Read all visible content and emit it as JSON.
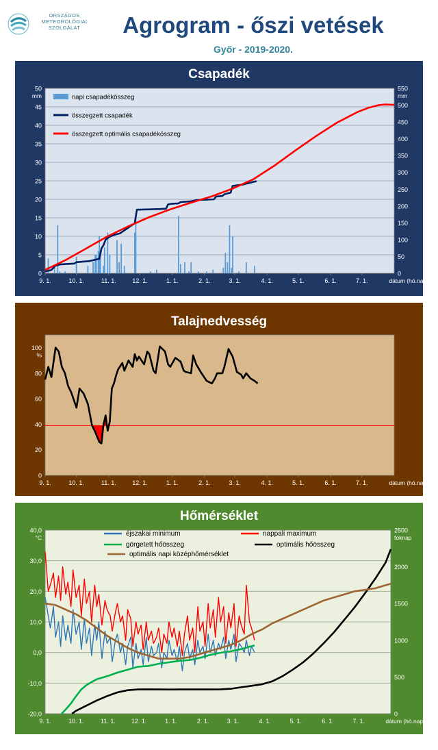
{
  "header": {
    "logo_lines": [
      "ORSZÁGOS",
      "METEOROLÓGIAI",
      "SZOLGÁLAT"
    ],
    "title": "Agrogram - őszi vetések",
    "subtitle": "Győr - 2019-2020."
  },
  "colors": {
    "title": "#1f497d",
    "subtitle": "#31849b",
    "panel1_bg": "#1f3864",
    "panel2_bg": "#6e3600",
    "panel3_bg": "#4f8a2e"
  },
  "chart_data": [
    {
      "type": "bar",
      "title": "Csapadék",
      "x_ticks": [
        "9. 1.",
        "10. 1.",
        "11. 1.",
        "12. 1.",
        "1. 1.",
        "2. 1.",
        "3. 1.",
        "4. 1.",
        "5. 1.",
        "6. 1.",
        "7. 1."
      ],
      "x_axis_label": "dátum (hó.nap)",
      "xlim_days": [
        0,
        335
      ],
      "y_left": {
        "unit": "mm",
        "ylim": [
          0,
          50
        ],
        "ticks": [
          0,
          5,
          10,
          15,
          20,
          25,
          30,
          35,
          40,
          45,
          50
        ]
      },
      "y_right": {
        "unit": "mm",
        "ylim": [
          0,
          550
        ],
        "ticks": [
          0,
          50,
          100,
          150,
          200,
          250,
          300,
          350,
          400,
          450,
          500,
          550
        ]
      },
      "legend": [
        "napi csapadékösszeg",
        "összegzett csapadék",
        "összegzett optimális csapadékösszeg"
      ],
      "series": [
        {
          "name": "napi csapadékösszeg",
          "axis": "left",
          "color": "#5b9bd5",
          "x": [
            3,
            9,
            12,
            14,
            19,
            30,
            41,
            46,
            48,
            49,
            51,
            52,
            53,
            56,
            57,
            60,
            62,
            69,
            71,
            73,
            76,
            86,
            87,
            101,
            107,
            128,
            130,
            134,
            138,
            140,
            147,
            155,
            161,
            171,
            173,
            175,
            177,
            179,
            180,
            186,
            193,
            201
          ],
          "y": [
            4,
            2,
            13,
            0.5,
            0.5,
            4.5,
            2,
            3,
            5,
            5,
            6,
            10,
            4,
            2,
            7,
            11,
            5,
            9,
            3,
            8,
            2,
            11,
            16,
            0.5,
            1,
            15.5,
            2.5,
            3,
            0.5,
            3,
            0.5,
            0.5,
            1,
            1.5,
            5.5,
            3,
            13,
            1.5,
            10,
            0.5,
            3,
            2
          ]
        },
        {
          "name": "összegzett csapadék",
          "axis": "right",
          "color": "#002060",
          "x": [
            0,
            6,
            10,
            14,
            18,
            28,
            30,
            42,
            52,
            54,
            56,
            58,
            62,
            66,
            72,
            86,
            88,
            100,
            110,
            116,
            118,
            122,
            128,
            130,
            140,
            146,
            155,
            162,
            164,
            170,
            172,
            178,
            180,
            190,
            200,
            203
          ],
          "y": [
            5,
            10,
            23,
            26,
            27,
            29,
            33,
            36,
            43,
            74,
            84,
            100,
            109,
            114,
            119,
            149,
            189,
            190,
            191,
            192,
            205,
            207,
            208,
            212,
            214,
            218,
            219,
            220,
            228,
            230,
            235,
            240,
            260,
            264,
            272,
            274
          ]
        },
        {
          "name": "összegzett optimális csapadékösszeg",
          "axis": "right",
          "color": "#ff0000",
          "x": [
            0,
            20,
            40,
            60,
            80,
            100,
            120,
            140,
            160,
            180,
            200,
            220,
            240,
            260,
            280,
            300,
            310,
            320,
            326,
            335
          ],
          "y": [
            10,
            40,
            75,
            110,
            140,
            167,
            190,
            210,
            229,
            252,
            280,
            320,
            365,
            408,
            448,
            480,
            492,
            500,
            502,
            501
          ]
        }
      ]
    },
    {
      "type": "line",
      "title": "Talajnedvesség",
      "x_ticks": [
        "9. 1.",
        "10. 1.",
        "11. 1.",
        "12. 1.",
        "1. 1.",
        "2. 1.",
        "3. 1.",
        "4. 1.",
        "5. 1.",
        "6. 1.",
        "7. 1."
      ],
      "x_axis_label": "dátum (hó.nap)",
      "xlim_days": [
        0,
        335
      ],
      "y_left": {
        "unit": "%",
        "ylim": [
          0,
          110
        ],
        "ticks": [
          0,
          20,
          40,
          60,
          80,
          100
        ]
      },
      "threshold": {
        "value": 39,
        "color": "#ff0000"
      },
      "series": [
        {
          "name": "",
          "color": "#000000",
          "x": [
            0,
            3,
            6,
            10,
            13,
            16,
            19,
            22,
            25,
            28,
            30,
            33,
            37,
            41,
            45,
            48,
            50,
            52,
            54,
            56,
            58,
            60,
            62,
            64,
            66,
            68,
            70,
            74,
            76,
            80,
            84,
            86,
            88,
            90,
            95,
            98,
            100,
            104,
            106,
            110,
            115,
            118,
            120,
            125,
            130,
            133,
            135,
            140,
            142,
            145,
            150,
            155,
            160,
            163,
            165,
            168,
            170,
            172,
            176,
            180,
            184,
            188,
            190,
            193,
            197,
            201,
            204
          ],
          "y": [
            75,
            85,
            77,
            100,
            97,
            85,
            80,
            70,
            65,
            58,
            53,
            68,
            64,
            56,
            39,
            34,
            30,
            26,
            25,
            40,
            47,
            35,
            42,
            68,
            72,
            78,
            83,
            88,
            82,
            90,
            85,
            95,
            90,
            93,
            87,
            97,
            95,
            82,
            80,
            101,
            97,
            87,
            85,
            92,
            89,
            82,
            81,
            80,
            94,
            87,
            80,
            74,
            72,
            76,
            80,
            80,
            80,
            85,
            99,
            93,
            81,
            79,
            76,
            80,
            76,
            74,
            72
          ]
        }
      ]
    },
    {
      "type": "line",
      "title": "Hőmérséklet",
      "x_ticks": [
        "9. 1.",
        "10. 1.",
        "11. 1.",
        "12. 1.",
        "1. 1.",
        "2. 1.",
        "3. 1.",
        "4. 1.",
        "5. 1.",
        "6. 1.",
        "7. 1."
      ],
      "x_axis_label": "dátum (hó.nap)",
      "xlim_days": [
        0,
        335
      ],
      "y_left": {
        "unit": "°C",
        "ylim": [
          -20,
          40
        ],
        "ticks": [
          "-20,0",
          "-10,0",
          "0,0",
          "10,0",
          "20,0",
          "30,0",
          "40,0"
        ]
      },
      "y_right": {
        "unit": "foknap",
        "ylim": [
          0,
          2500
        ],
        "ticks": [
          0,
          500,
          1000,
          1500,
          2000,
          2500
        ]
      },
      "legend": [
        "éjszakai minimum",
        "nappali maximum",
        "görgetett hőösszeg",
        "optimális hőösszeg",
        "optimális napi középhőmérséklet"
      ],
      "series": [
        {
          "name": "éjszakai minimum",
          "axis": "left",
          "color": "#2e75b6",
          "x": [
            0,
            3,
            5,
            8,
            10,
            13,
            15,
            17,
            20,
            22,
            25,
            27,
            30,
            33,
            35,
            38,
            40,
            43,
            45,
            48,
            50,
            52,
            55,
            58,
            60,
            63,
            65,
            68,
            70,
            73,
            75,
            78,
            80,
            83,
            85,
            88,
            90,
            93,
            95,
            98,
            100,
            103,
            105,
            108,
            110,
            113,
            115,
            118,
            120,
            123,
            125,
            128,
            130,
            133,
            135,
            138,
            140,
            143,
            145,
            148,
            150,
            153,
            155,
            158,
            160,
            163,
            165,
            168,
            170,
            173,
            175,
            178,
            180,
            183,
            185,
            188,
            190,
            193,
            195,
            198,
            200,
            203
          ],
          "y": [
            18,
            12,
            8,
            15,
            5,
            10,
            2,
            12,
            4,
            9,
            3,
            14,
            6,
            10,
            1,
            11,
            3,
            8,
            -1,
            9,
            4,
            10,
            -2,
            7,
            3,
            5,
            -3,
            4,
            6,
            0,
            3,
            -4,
            2,
            5,
            -5,
            3,
            -2,
            1,
            -4,
            5,
            -3,
            2,
            -1,
            0,
            3,
            -5,
            0,
            -2,
            4,
            -1,
            1,
            -3,
            2,
            -6,
            0,
            3,
            -2,
            1,
            -4,
            4,
            0,
            2,
            -2,
            6,
            0,
            4,
            -1,
            3,
            1,
            5,
            -2,
            4,
            1,
            6,
            -3,
            3,
            2,
            0,
            4,
            -1,
            2,
            0
          ]
        },
        {
          "name": "nappali maximum",
          "axis": "left",
          "color": "#ff0000",
          "x": [
            0,
            3,
            5,
            8,
            10,
            13,
            15,
            17,
            20,
            22,
            25,
            27,
            30,
            33,
            35,
            38,
            40,
            43,
            45,
            48,
            50,
            52,
            55,
            58,
            60,
            63,
            65,
            68,
            70,
            73,
            75,
            78,
            80,
            83,
            85,
            88,
            90,
            93,
            95,
            98,
            100,
            103,
            105,
            108,
            110,
            113,
            115,
            118,
            120,
            123,
            125,
            128,
            130,
            133,
            135,
            138,
            140,
            143,
            145,
            148,
            150,
            153,
            155,
            158,
            160,
            163,
            165,
            168,
            170,
            173,
            175,
            178,
            180,
            183,
            185,
            188,
            190,
            193,
            195,
            198,
            200,
            203
          ],
          "y": [
            33,
            20,
            22,
            26,
            18,
            25,
            17,
            28,
            19,
            23,
            15,
            27,
            18,
            22,
            12,
            24,
            16,
            20,
            10,
            22,
            15,
            19,
            9,
            17,
            14,
            12,
            7,
            13,
            16,
            10,
            12,
            4,
            14,
            11,
            2,
            10,
            6,
            9,
            1,
            10,
            4,
            7,
            3,
            5,
            8,
            0,
            6,
            3,
            10,
            5,
            8,
            2,
            7,
            -1,
            6,
            12,
            4,
            8,
            0,
            15,
            7,
            10,
            2,
            16,
            8,
            14,
            5,
            18,
            10,
            15,
            3,
            13,
            8,
            16,
            2,
            12,
            9,
            6,
            22,
            10,
            8,
            4
          ]
        },
        {
          "name": "görgetett hőösszeg",
          "axis": "right",
          "color": "#00b050",
          "x": [
            16,
            20,
            25,
            30,
            35,
            40,
            45,
            50,
            55,
            60,
            70,
            80,
            90,
            100,
            110,
            120,
            130,
            140,
            150,
            160,
            170,
            180,
            190,
            200,
            203
          ],
          "y": [
            0,
            60,
            140,
            240,
            330,
            390,
            430,
            470,
            490,
            510,
            560,
            600,
            640,
            650,
            680,
            700,
            720,
            730,
            760,
            800,
            830,
            850,
            880,
            920,
            930
          ]
        },
        {
          "name": "optimális hőösszeg",
          "axis": "right",
          "color": "#000000",
          "x": [
            26,
            30,
            40,
            50,
            60,
            70,
            80,
            90,
            100,
            110,
            120,
            130,
            140,
            150,
            160,
            170,
            180,
            190,
            200,
            210,
            220,
            230,
            240,
            250,
            260,
            270,
            280,
            290,
            300,
            310,
            320,
            330,
            335
          ],
          "y": [
            0,
            40,
            110,
            180,
            240,
            290,
            320,
            330,
            332,
            330,
            329,
            330,
            330,
            330,
            330,
            332,
            340,
            360,
            380,
            400,
            440,
            510,
            600,
            700,
            820,
            960,
            1110,
            1280,
            1450,
            1640,
            1840,
            2060,
            2240
          ]
        },
        {
          "name": "optimális napi középhőmérséklet",
          "axis": "left",
          "color": "#9c6531",
          "x": [
            0,
            10,
            20,
            30,
            40,
            50,
            60,
            70,
            80,
            90,
            100,
            110,
            120,
            130,
            140,
            150,
            160,
            170,
            180,
            190,
            200,
            210,
            220,
            230,
            240,
            250,
            260,
            270,
            280,
            290,
            300,
            310,
            320,
            330,
            335
          ],
          "y": [
            16,
            15.5,
            14,
            12.5,
            10.5,
            8,
            5.5,
            3.5,
            1.5,
            0,
            -1,
            -2,
            -2,
            -2,
            -1.5,
            -0.5,
            0.5,
            1.5,
            2.5,
            4,
            6,
            7.5,
            9.5,
            11,
            12.5,
            14,
            15.5,
            17,
            18,
            19,
            20,
            20.5,
            21,
            22,
            22.5
          ]
        }
      ]
    }
  ]
}
